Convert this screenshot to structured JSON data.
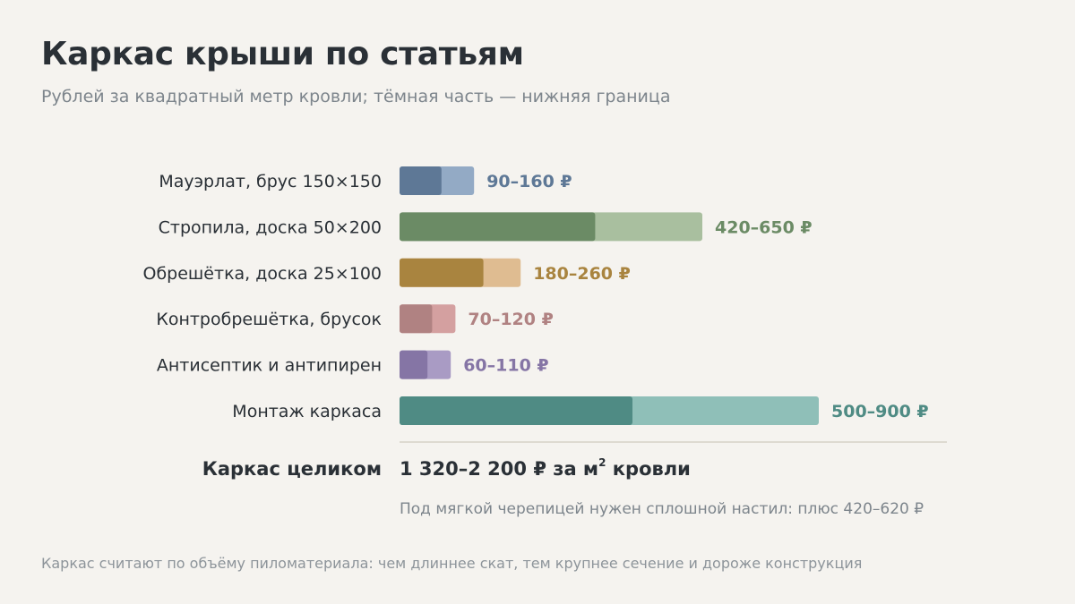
{
  "title": "Каркас крыши по статьям",
  "subtitle": "Рублей за квадратный метр кровли; тёмная часть — нижняя граница",
  "chart_data": {
    "type": "bar",
    "orientation": "horizontal",
    "encoding": "range",
    "categories": [
      "Мауэрлат, брус 150×150",
      "Стропила, доска 50×200",
      "Обрешётка, доска 25×100",
      "Контробрешётка, брусок",
      "Антисептик и антипирен",
      "Монтаж каркаса"
    ],
    "ranges": [
      [
        90,
        160
      ],
      [
        420,
        650
      ],
      [
        180,
        260
      ],
      [
        70,
        120
      ],
      [
        60,
        110
      ],
      [
        500,
        900
      ]
    ],
    "value_labels": [
      "90–160 ₽",
      "420–650 ₽",
      "180–260 ₽",
      "70–120 ₽",
      "60–110 ₽",
      "500–900 ₽"
    ],
    "colors_dark": [
      "#5e7896",
      "#6b8b65",
      "#a9843f",
      "#b08282",
      "#8575a5",
      "#4f8b84"
    ],
    "colors_light": [
      "#93aac5",
      "#a9bf9f",
      "#dfbc91",
      "#d4a0a0",
      "#a99bc4",
      "#8fbfb8"
    ],
    "xlim": [
      0,
      900
    ],
    "grid": false,
    "legend": "none"
  },
  "total": {
    "label": "Каркас целиком",
    "value_main": "1 320–2 200 ₽ за м",
    "value_sup": "2",
    "value_tail": " кровли",
    "note": "Под мягкой черепицей нужен сплошной настил: плюс 420–620 ₽"
  },
  "footnote": "Каркас считают по объёму пиломатериала: чем длиннее скат, тем крупнее сечение и дороже конструкция"
}
